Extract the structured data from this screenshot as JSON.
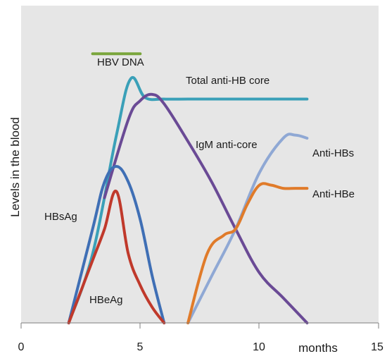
{
  "chart_data": {
    "type": "line",
    "xlabel": "months",
    "ylabel": "Levels  in the blood",
    "xlim": [
      0,
      15
    ],
    "x_ticks": [
      0,
      5,
      10,
      15
    ],
    "x_tick_labels": [
      "0",
      "5",
      "10",
      "15"
    ],
    "ylim": [
      0,
      100
    ],
    "grid": false,
    "legend": "none",
    "background_color": "#e6e6e6",
    "series": [
      {
        "name": "HBV DNA",
        "color": "#7aa63c",
        "x": [
          3.0,
          5.0
        ],
        "y": [
          86,
          86
        ]
      },
      {
        "name": "Total anti-HB core",
        "color": "#3aa0b8",
        "x": [
          2.0,
          3.0,
          4.0,
          4.6,
          5.2,
          6.0,
          7.0,
          8.0,
          9.0,
          10.0,
          11.0,
          12.0
        ],
        "y": [
          0,
          22,
          60,
          78,
          72,
          71.5,
          71.5,
          71.5,
          71.5,
          71.5,
          71.5,
          71.5
        ]
      },
      {
        "name": "IgM anti-core",
        "color": "#6a4a95",
        "x": [
          3.5,
          4.5,
          5.0,
          5.5,
          6.0,
          7.0,
          8.0,
          9.0,
          10.0,
          11.0,
          12.0
        ],
        "y": [
          40,
          65,
          71,
          73,
          70,
          58,
          45,
          30,
          16,
          8,
          0
        ]
      },
      {
        "name": "HBsAg",
        "color": "#3f6fb5",
        "x": [
          2.0,
          3.0,
          3.5,
          4.0,
          4.5,
          5.0,
          5.5,
          6.0
        ],
        "y": [
          0,
          30,
          45,
          50,
          45,
          33,
          15,
          0
        ]
      },
      {
        "name": "HBeAg",
        "color": "#c0392b",
        "x": [
          2.0,
          3.0,
          3.5,
          4.0,
          4.5,
          5.0,
          5.5,
          6.0
        ],
        "y": [
          0,
          20,
          30,
          42,
          22,
          12,
          5,
          0
        ]
      },
      {
        "name": "Anti-HBs",
        "color": "#8fa8d4",
        "x": [
          7.0,
          8.0,
          9.0,
          10.0,
          11.0,
          11.5,
          12.0
        ],
        "y": [
          0,
          15,
          30,
          48,
          59,
          60,
          59
        ]
      },
      {
        "name": "Anti-HBe",
        "color": "#e07b2a",
        "x": [
          7.0,
          7.8,
          8.5,
          9.0,
          9.5,
          10.0,
          10.5,
          11.0,
          11.5,
          12.0
        ],
        "y": [
          0,
          22,
          28,
          30,
          38,
          44,
          44,
          43,
          43,
          43
        ]
      }
    ],
    "annotations": [
      {
        "text": "HBV DNA"
      },
      {
        "text": "Total anti-HB core"
      },
      {
        "text": "IgM anti-core"
      },
      {
        "text": "Anti-HBs"
      },
      {
        "text": "Anti-HBe"
      },
      {
        "text": "HBsAg"
      },
      {
        "text": "HBeAg"
      }
    ]
  }
}
